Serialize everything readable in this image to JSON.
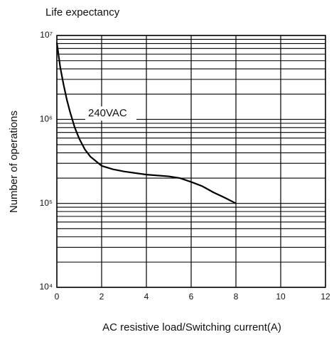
{
  "chart_data": {
    "type": "line",
    "title": "Life expectancy",
    "xlabel": "AC resistive load/Switching current(A)",
    "ylabel": "Number of operations",
    "x": [
      0,
      0.15,
      0.3,
      0.45,
      0.6,
      0.8,
      1,
      1.25,
      1.5,
      2,
      2.5,
      3,
      4,
      5,
      5.5,
      6,
      6.5,
      7,
      7.5,
      8
    ],
    "series": [
      {
        "name": "240VAC",
        "color": "#000000",
        "values": [
          8200000,
          4200000,
          2600000,
          1700000,
          1200000,
          800000,
          590000,
          440000,
          360000,
          280000,
          255000,
          240000,
          220000,
          210000,
          200000,
          180000,
          160000,
          135000,
          117000,
          100000
        ]
      }
    ],
    "xlim": [
      0,
      12
    ],
    "xticks": [
      0,
      2,
      4,
      6,
      8,
      10,
      12
    ],
    "ylim": [
      10000,
      10000000
    ],
    "log_y": true,
    "yticks": [
      {
        "value": 10000,
        "label": "10⁴"
      },
      {
        "value": 100000,
        "label": "10⁵"
      },
      {
        "value": 1000000,
        "label": "10⁶"
      },
      {
        "value": 10000000,
        "label": "10⁷"
      }
    ],
    "yminorticks": [
      20000,
      30000,
      40000,
      50000,
      60000,
      70000,
      80000,
      90000,
      200000,
      300000,
      400000,
      500000,
      600000,
      700000,
      800000,
      900000,
      2000000,
      3000000,
      4000000,
      5000000,
      6000000,
      7000000,
      8000000,
      9000000
    ],
    "grid": true
  }
}
